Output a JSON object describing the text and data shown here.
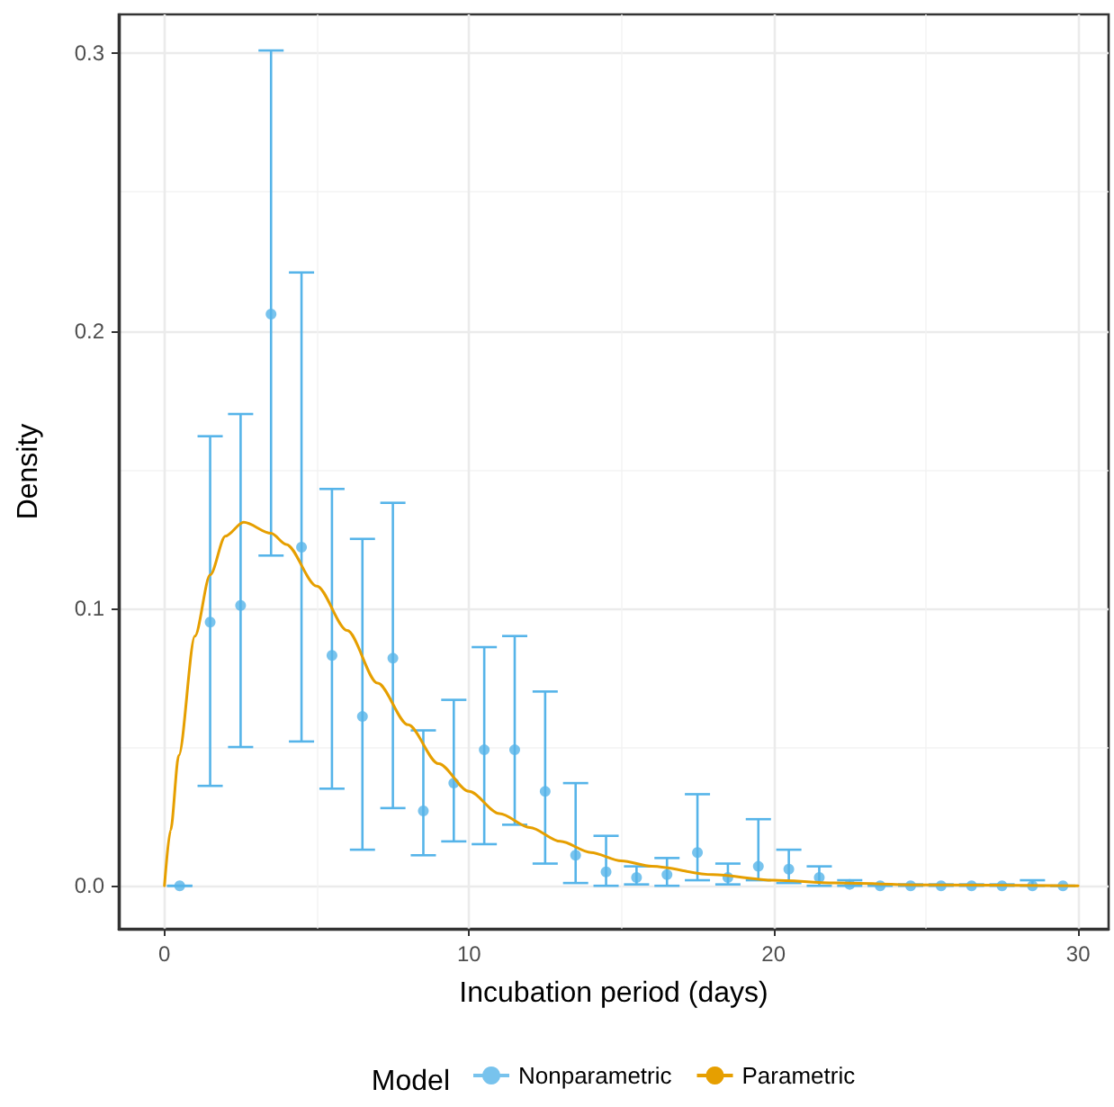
{
  "chart_data": {
    "type": "scatter",
    "xlabel": "Incubation period (days)",
    "ylabel": "Density",
    "legend_title": "Model",
    "legend": "bottom",
    "grid": true,
    "xlim": [
      -1.5,
      31
    ],
    "xticks": [
      0,
      10,
      20,
      30
    ],
    "ylim": [
      -0.0155,
      0.314
    ],
    "yticks": [
      {
        "value": 0,
        "label": "0.0"
      },
      {
        "value": 0.1,
        "label": "0.1"
      },
      {
        "value": 0.2,
        "label": "0.2"
      },
      {
        "value": 0.3,
        "label": "0.3"
      }
    ],
    "series": [
      {
        "name": "Nonparametric",
        "marker": "circle",
        "color": "#56b4e9",
        "x": [
          0.5,
          1.5,
          2.5,
          3.5,
          4.5,
          5.5,
          6.5,
          7.5,
          8.5,
          9.5,
          10.5,
          11.5,
          12.5,
          13.5,
          14.5,
          15.5,
          16.5,
          17.5,
          18.5,
          19.5,
          20.5,
          21.5,
          22.5,
          23.5,
          24.5,
          25.5,
          26.5,
          27.5,
          28.5,
          29.5
        ],
        "values": [
          0,
          0.095,
          0.101,
          0.206,
          0.122,
          0.083,
          0.061,
          0.082,
          0.027,
          0.037,
          0.049,
          0.049,
          0.034,
          0.011,
          0.005,
          0.003,
          0.004,
          0.012,
          0.003,
          0.007,
          0.006,
          0.003,
          0.0005,
          0,
          0,
          0,
          0,
          0,
          0,
          0
        ],
        "errors": [
          [
            0,
            0
          ],
          [
            0.036,
            0.162
          ],
          [
            0.05,
            0.17
          ],
          [
            0.119,
            0.301
          ],
          [
            0.052,
            0.221
          ],
          [
            0.035,
            0.143
          ],
          [
            0.013,
            0.125
          ],
          [
            0.028,
            0.138
          ],
          [
            0.011,
            0.056
          ],
          [
            0.016,
            0.067
          ],
          [
            0.015,
            0.086
          ],
          [
            0.022,
            0.09
          ],
          [
            0.008,
            0.07
          ],
          [
            0.001,
            0.037
          ],
          [
            0,
            0.018
          ],
          [
            0.0005,
            0.007
          ],
          [
            0,
            0.01
          ],
          [
            0.002,
            0.033
          ],
          [
            0.0005,
            0.008
          ],
          [
            0.002,
            0.024
          ],
          [
            0.001,
            0.013
          ],
          [
            0,
            0.007
          ],
          [
            0,
            0.002
          ],
          [
            0,
            0.0005
          ],
          [
            0,
            0.0005
          ],
          [
            0,
            0.0005
          ],
          [
            0,
            0.0005
          ],
          [
            0,
            0.0005
          ],
          [
            0,
            0.002
          ],
          [
            0,
            0
          ]
        ]
      },
      {
        "name": "Parametric",
        "type": "line",
        "marker": "none",
        "color": "#e69f00",
        "x": [
          0,
          0.2,
          0.47,
          1,
          1.5,
          2,
          2.6,
          3.5,
          4,
          5,
          6,
          7,
          8,
          9,
          10,
          11,
          12,
          13,
          14,
          15,
          16,
          18,
          20,
          22,
          25,
          30
        ],
        "values": [
          0,
          0.02,
          0.047,
          0.09,
          0.112,
          0.126,
          0.131,
          0.127,
          0.123,
          0.108,
          0.092,
          0.073,
          0.058,
          0.044,
          0.034,
          0.026,
          0.021,
          0.016,
          0.012,
          0.009,
          0.007,
          0.004,
          0.002,
          0.001,
          0.0003,
          0
        ]
      }
    ]
  }
}
